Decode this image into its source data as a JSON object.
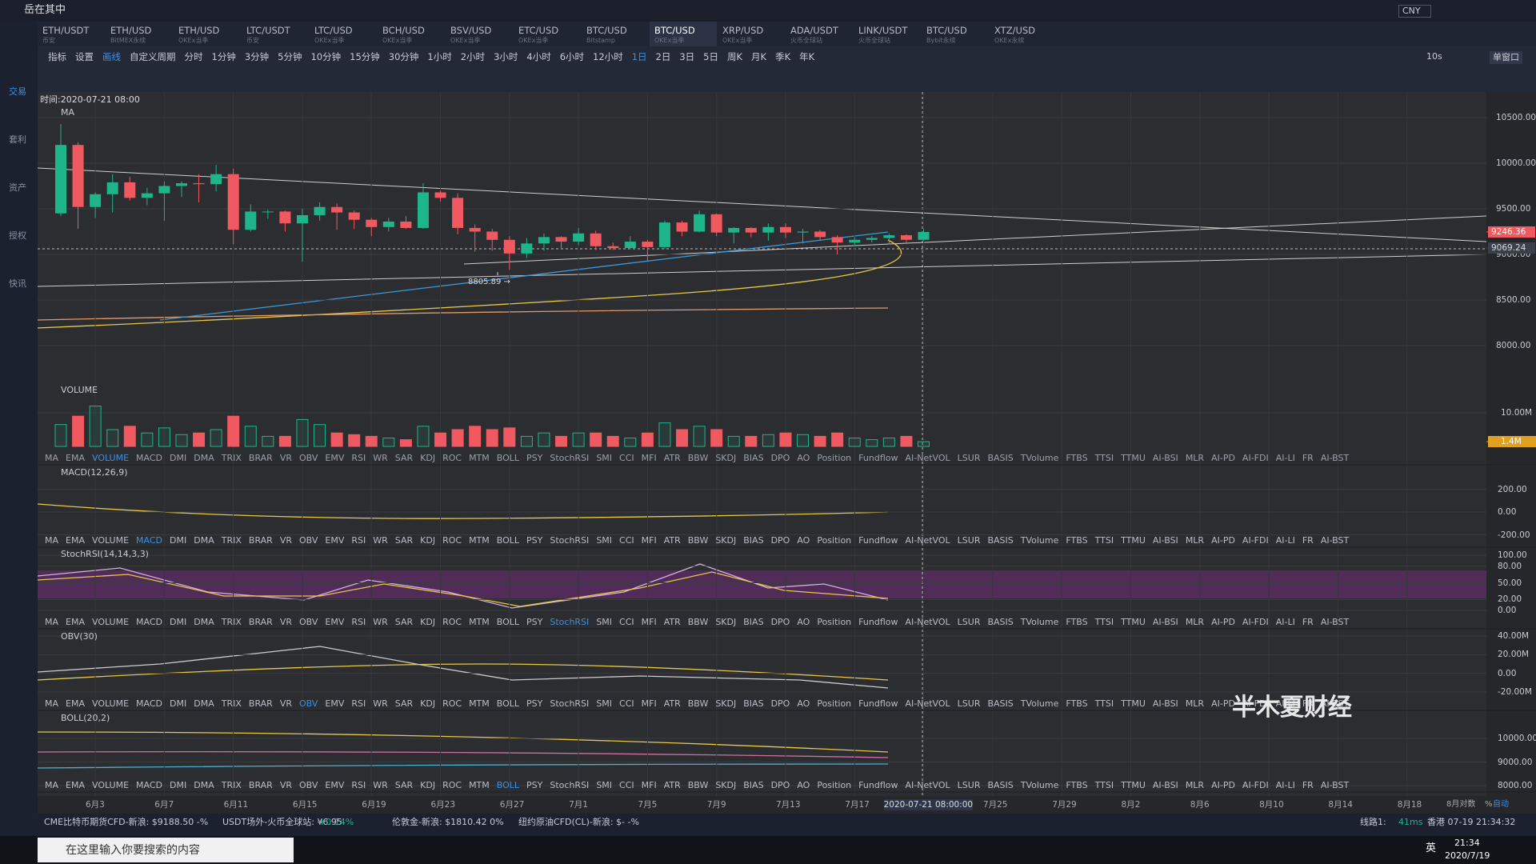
{
  "window": {
    "title": "岳在其中",
    "currency": "CNY"
  },
  "sidebar": [
    "交易",
    "套利",
    "资产",
    "授权",
    "快讯"
  ],
  "tabs": [
    {
      "symbol": "ETH/USDT",
      "exchange": "币安"
    },
    {
      "symbol": "ETH/USD",
      "exchange": "BitMEX永续"
    },
    {
      "symbol": "ETH/USD",
      "exchange": "OKEx当季"
    },
    {
      "symbol": "LTC/USDT",
      "exchange": "币安"
    },
    {
      "symbol": "LTC/USD",
      "exchange": "OKEx当季"
    },
    {
      "symbol": "BCH/USD",
      "exchange": "OKEx当季"
    },
    {
      "symbol": "BSV/USD",
      "exchange": "OKEx当季"
    },
    {
      "symbol": "ETC/USD",
      "exchange": "OKEx当季"
    },
    {
      "symbol": "BTC/USD",
      "exchange": "Bitstamp"
    },
    {
      "symbol": "BTC/USD",
      "exchange": "OKEx当季"
    },
    {
      "symbol": "XRP/USD",
      "exchange": "OKEx当季"
    },
    {
      "symbol": "ADA/USDT",
      "exchange": "火币全球站"
    },
    {
      "symbol": "LINK/USDT",
      "exchange": "火币全球站"
    },
    {
      "symbol": "BTC/USD",
      "exchange": "Bybit永续"
    },
    {
      "symbol": "XTZ/USD",
      "exchange": "OKEx永续"
    }
  ],
  "active_tab": 9,
  "toolbar": {
    "buttons": [
      "指标",
      "设置",
      "画线",
      "自定义周期"
    ],
    "periods": [
      "分时",
      "1分钟",
      "3分钟",
      "5分钟",
      "10分钟",
      "15分钟",
      "30分钟",
      "1小时",
      "2小时",
      "3小时",
      "4小时",
      "6小时",
      "12小时",
      "1日",
      "2日",
      "3日",
      "5日",
      "周K",
      "月K",
      "季K",
      "年K"
    ],
    "active_period": 13,
    "refresh": "10s",
    "window_mode": "单窗口"
  },
  "main": {
    "time_label": "时间:2020-07-21 08:00",
    "indicator": "MA",
    "price_ticks": [
      {
        "value": 10500,
        "label": "10500.00"
      },
      {
        "value": 10000,
        "label": "10000.00"
      },
      {
        "value": 9500,
        "label": "9500.00"
      },
      {
        "value": 9000,
        "label": "9000.00"
      },
      {
        "value": 8500,
        "label": "8500.00"
      },
      {
        "value": 8000,
        "label": "8000.00"
      }
    ],
    "last_price": {
      "value": 9246.36,
      "label": "9246.36"
    },
    "cursor_price": {
      "value": 9069.24,
      "label": "9069.24"
    },
    "low_marker": {
      "value": 8805.89,
      "label": "8805.89 →"
    },
    "candles": [
      [
        9450,
        10430,
        9420,
        10200
      ],
      [
        10200,
        10230,
        9280,
        9520
      ],
      [
        9520,
        9680,
        9400,
        9660
      ],
      [
        9660,
        9880,
        9460,
        9790
      ],
      [
        9790,
        9850,
        9590,
        9620
      ],
      [
        9620,
        9730,
        9540,
        9670
      ],
      [
        9670,
        9800,
        9370,
        9750
      ],
      [
        9750,
        9800,
        9630,
        9780
      ],
      [
        9780,
        9880,
        9570,
        9770
      ],
      [
        9770,
        9980,
        9690,
        9880
      ],
      [
        9880,
        9940,
        9110,
        9270
      ],
      [
        9270,
        9550,
        9250,
        9470
      ],
      [
        9470,
        9490,
        9390,
        9470
      ],
      [
        9470,
        9480,
        9250,
        9340
      ],
      [
        9340,
        9500,
        8920,
        9430
      ],
      [
        9430,
        9570,
        9370,
        9520
      ],
      [
        9520,
        9560,
        9270,
        9460
      ],
      [
        9460,
        9480,
        9280,
        9380
      ],
      [
        9380,
        9400,
        9200,
        9300
      ],
      [
        9300,
        9400,
        9250,
        9360
      ],
      [
        9360,
        9420,
        9280,
        9290
      ],
      [
        9290,
        9780,
        9280,
        9680
      ],
      [
        9680,
        9700,
        9580,
        9620
      ],
      [
        9620,
        9670,
        9220,
        9290
      ],
      [
        9290,
        9330,
        9030,
        9250
      ],
      [
        9250,
        9280,
        9040,
        9160
      ],
      [
        9160,
        9200,
        8830,
        9010
      ],
      [
        9010,
        9180,
        8960,
        9120
      ],
      [
        9120,
        9230,
        9040,
        9190
      ],
      [
        9190,
        9200,
        9070,
        9140
      ],
      [
        9140,
        9290,
        9100,
        9230
      ],
      [
        9230,
        9260,
        9050,
        9090
      ],
      [
        9090,
        9130,
        9050,
        9070
      ],
      [
        9070,
        9200,
        9060,
        9140
      ],
      [
        9140,
        9160,
        8920,
        9080
      ],
      [
        9080,
        9370,
        9060,
        9350
      ],
      [
        9350,
        9370,
        9200,
        9250
      ],
      [
        9250,
        9480,
        9240,
        9440
      ],
      [
        9440,
        9450,
        9200,
        9240
      ],
      [
        9240,
        9300,
        9120,
        9290
      ],
      [
        9290,
        9300,
        9190,
        9240
      ],
      [
        9240,
        9340,
        9150,
        9300
      ],
      [
        9300,
        9340,
        9180,
        9240
      ],
      [
        9240,
        9280,
        9120,
        9250
      ],
      [
        9250,
        9270,
        9150,
        9190
      ],
      [
        9190,
        9210,
        9000,
        9130
      ],
      [
        9130,
        9190,
        9090,
        9160
      ],
      [
        9160,
        9200,
        9130,
        9180
      ],
      [
        9180,
        9230,
        9110,
        9210
      ],
      [
        9210,
        9220,
        9130,
        9160
      ],
      [
        9160,
        9280,
        9150,
        9246
      ]
    ]
  },
  "volume": {
    "label": "VOLUME",
    "ticks": [
      {
        "value": 10000000,
        "label": "10.00M"
      }
    ],
    "last": {
      "value": 1400000,
      "label": "1.4M"
    },
    "values": [
      6500000,
      9000000,
      12000000,
      5000000,
      6000000,
      4000000,
      5500000,
      3500000,
      4000000,
      5000000,
      9000000,
      6000000,
      3000000,
      3000000,
      8000000,
      6500000,
      4000000,
      3500000,
      3000000,
      2500000,
      2000000,
      6000000,
      4000000,
      5000000,
      6000000,
      5000000,
      5500000,
      3000000,
      4000000,
      3000000,
      4000000,
      4000000,
      3000000,
      2500000,
      4000000,
      7000000,
      5000000,
      6000000,
      5000000,
      3000000,
      3000000,
      3500000,
      4000000,
      3500000,
      3000000,
      4000000,
      2500000,
      2000000,
      2500000,
      3000000,
      1400000
    ]
  },
  "indicators": [
    "MA",
    "EMA",
    "VOLUME",
    "MACD",
    "DMI",
    "DMA",
    "TRIX",
    "BRAR",
    "VR",
    "OBV",
    "EMV",
    "RSI",
    "WR",
    "SAR",
    "KDJ",
    "ROC",
    "MTM",
    "BOLL",
    "PSY",
    "StochRSI",
    "SMI",
    "CCI",
    "MFI",
    "ATR",
    "BBW",
    "SKDJ",
    "BIAS",
    "DPO",
    "AO",
    "Position",
    "Fundflow",
    "AI-NetVOL",
    "LSUR",
    "BASIS",
    "TVolume",
    "FTBS",
    "TTSI",
    "TTMU",
    "AI-BSI",
    "MLR",
    "AI-PD",
    "AI-FDI",
    "AI-LI",
    "FR",
    "AI-BST"
  ],
  "panels": [
    {
      "label": "MACD(12,26,9)",
      "active": 3,
      "ticks": [
        {
          "value": 200,
          "label": "200.00"
        },
        {
          "value": 0,
          "label": "0.00"
        },
        {
          "value": -200,
          "label": "-200.00"
        }
      ]
    },
    {
      "label": "StochRSI(14,14,3,3)",
      "active": 19,
      "ticks": [
        {
          "value": 100,
          "label": "100.00"
        },
        {
          "value": 80,
          "label": "80.00"
        },
        {
          "value": 50,
          "label": "50.00"
        },
        {
          "value": 20,
          "label": "20.00"
        },
        {
          "value": 0,
          "label": "0.00"
        }
      ]
    },
    {
      "label": "OBV(30)",
      "active": 9,
      "ticks": [
        {
          "value": 40000000,
          "label": "40.00M"
        },
        {
          "value": 20000000,
          "label": "20.00M"
        },
        {
          "value": 0,
          "label": "0.00"
        },
        {
          "value": -20000000,
          "label": "-20.00M"
        }
      ]
    },
    {
      "label": "BOLL(20,2)",
      "active": 17,
      "ticks": [
        {
          "value": 10000,
          "label": "10000.00"
        },
        {
          "value": 9000,
          "label": "9000.00"
        },
        {
          "value": 8000,
          "label": "8000.00"
        }
      ]
    }
  ],
  "date_axis": [
    "6月3",
    "6月7",
    "6月11",
    "6月15",
    "6月19",
    "6月23",
    "6月27",
    "7月1",
    "7月5",
    "7月9",
    "7月13",
    "7月17",
    "2020-07-21 08:00:00",
    "7月25",
    "7月29",
    "8月2",
    "8月6",
    "8月10",
    "8月14",
    "8月18"
  ],
  "axis_options": [
    "8月对数",
    "%",
    "自动"
  ],
  "status": [
    "CME比特币期货CFD-新浪: $9188.50 -%",
    "USDT场外-火币全球站: ¥6.95",
    "+0.14%",
    "伦敦金-新浪: $1810.42 0%",
    "纽约原油CFD(CL)-新浪: $- -%"
  ],
  "status_right": {
    "line": "线路1:",
    "latency": "41ms",
    "clock": "香港 07-19 21:34:32"
  },
  "watermark": "半木夏财经",
  "taskbar": {
    "search": "在这里输入你要搜索的内容",
    "ime": "英",
    "time": "21:34",
    "date": "2020/7/19"
  }
}
